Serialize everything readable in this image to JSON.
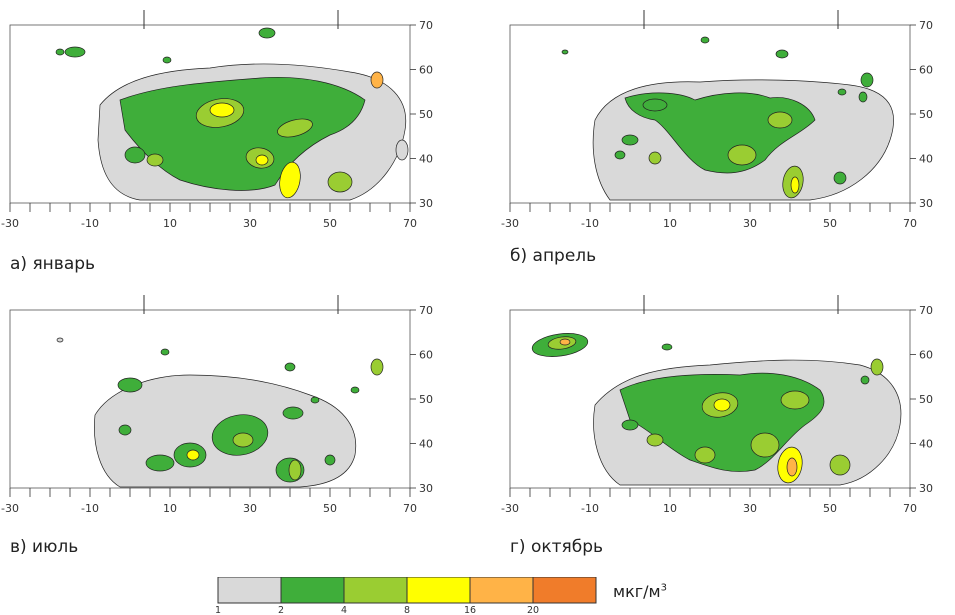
{
  "panels": [
    {
      "id": "jan",
      "label": "а) январь"
    },
    {
      "id": "apr",
      "label": "б) апрель"
    },
    {
      "id": "jul",
      "label": "в) июль"
    },
    {
      "id": "oct",
      "label": "г) октябрь"
    }
  ],
  "axes": {
    "x_ticks": [
      "-30",
      "-10",
      "10",
      "30",
      "50",
      "70"
    ],
    "y_ticks": [
      "70",
      "60",
      "50",
      "40",
      "30"
    ]
  },
  "legend": {
    "unit": "мкг/м",
    "unit_superscript": "3",
    "levels": [
      "1",
      "2",
      "4",
      "8",
      "16",
      "20"
    ],
    "colors": [
      "#d9d9d9",
      "#3fae3a",
      "#9acd32",
      "#ffff00",
      "#ffb347",
      "#f07c2a"
    ]
  },
  "colors": {
    "gray": "#d9d9d9",
    "green": "#3fae3a",
    "yellowgreen": "#9acd32",
    "yellow": "#ffff00",
    "orange": "#ffb347",
    "darkorange": "#f07c2a"
  }
}
